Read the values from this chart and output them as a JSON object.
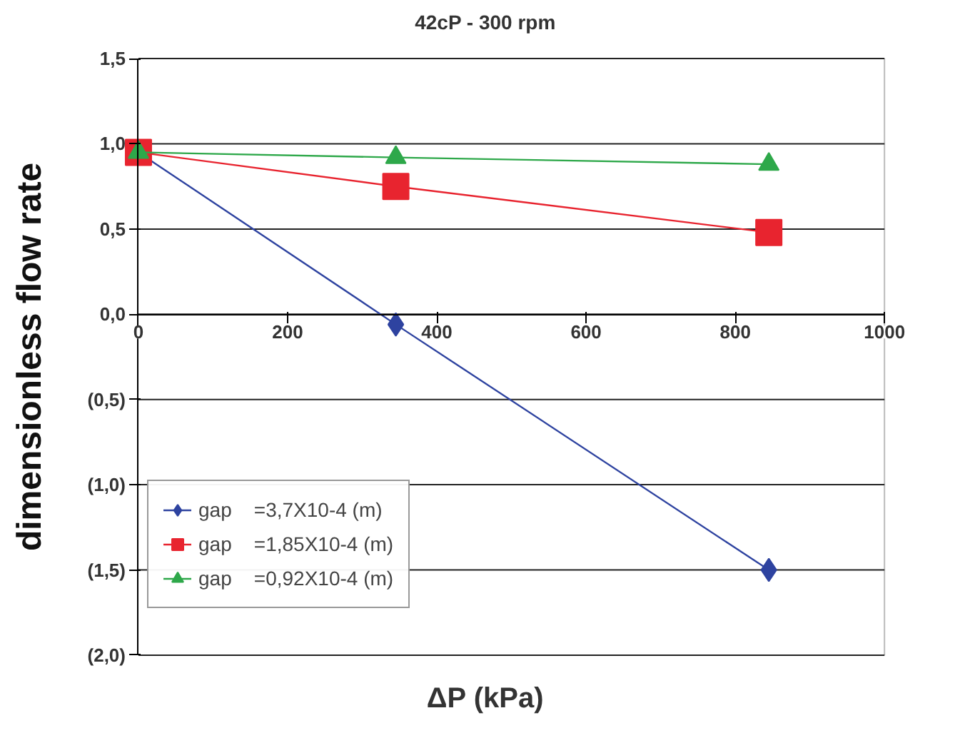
{
  "chart_data": {
    "type": "line",
    "title": "42cP - 300 rpm",
    "xlabel": "ΔP (kPa)",
    "ylabel": "dimensionless flow rate",
    "x": [
      0,
      345,
      845
    ],
    "series": [
      {
        "name": "gap    =3,7X10-4 (m)",
        "color": "#2e43a0",
        "marker": "diamond",
        "values": [
          0.95,
          -0.06,
          -1.5
        ]
      },
      {
        "name": "gap    =1,85X10-4 (m)",
        "color": "#e8242f",
        "marker": "square",
        "values": [
          0.95,
          0.75,
          0.48
        ]
      },
      {
        "name": "gap    =0,92X10-4 (m)",
        "color": "#2ea84a",
        "marker": "triangle",
        "values": [
          0.95,
          0.92,
          0.88
        ]
      }
    ],
    "xlim": [
      0,
      1000
    ],
    "xticks": [
      0,
      200,
      400,
      600,
      800,
      1000
    ],
    "ylim": [
      -2,
      1.5
    ],
    "yticks": [
      {
        "value": 1.5,
        "label": "1,5"
      },
      {
        "value": 1,
        "label": "1,0"
      },
      {
        "value": 0.5,
        "label": "0,5"
      },
      {
        "value": 0,
        "label": "0,0"
      },
      {
        "value": -0.5,
        "label": "(0,5)"
      },
      {
        "value": -1,
        "label": "(1,0)"
      },
      {
        "value": -1.5,
        "label": "(1,5)"
      },
      {
        "value": -2,
        "label": "(2,0)"
      }
    ],
    "grid": "y",
    "legend": "bottom left"
  }
}
